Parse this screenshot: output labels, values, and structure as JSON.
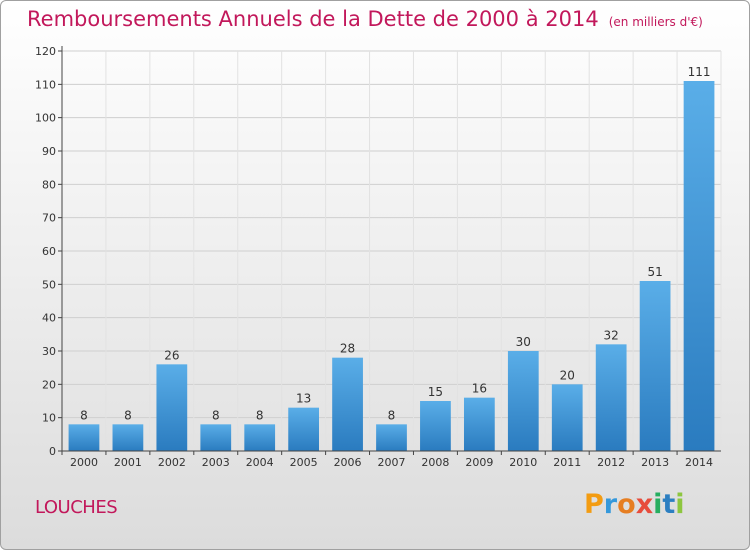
{
  "chart_data": {
    "type": "bar",
    "title": "Remboursements Annuels de la Dette de 2000 à 2014",
    "subtitle": "(en milliers d'€)",
    "categories": [
      "2000",
      "2001",
      "2002",
      "2003",
      "2004",
      "2005",
      "2006",
      "2007",
      "2008",
      "2009",
      "2010",
      "2011",
      "2012",
      "2013",
      "2014"
    ],
    "values": [
      8,
      8,
      26,
      8,
      8,
      13,
      28,
      8,
      15,
      16,
      30,
      20,
      32,
      51,
      111
    ],
    "yticks": [
      0,
      10,
      20,
      30,
      40,
      50,
      60,
      70,
      80,
      90,
      100,
      110,
      120
    ],
    "ylim": [
      0,
      120
    ],
    "xlabel": "",
    "ylabel": "",
    "bar_color_top": "#5aaee8",
    "bar_color_bottom": "#2a7bbf"
  },
  "commune": "LOUCHES",
  "brand": {
    "letters": [
      "P",
      "r",
      "o",
      "x",
      "i",
      "t",
      "i"
    ],
    "colors": [
      "#f39c12",
      "#3498db",
      "#e67e22",
      "#e74c3c",
      "#27ae60",
      "#2c7fc1",
      "#8dc63f"
    ]
  },
  "colors": {
    "title": "#c2185b"
  }
}
